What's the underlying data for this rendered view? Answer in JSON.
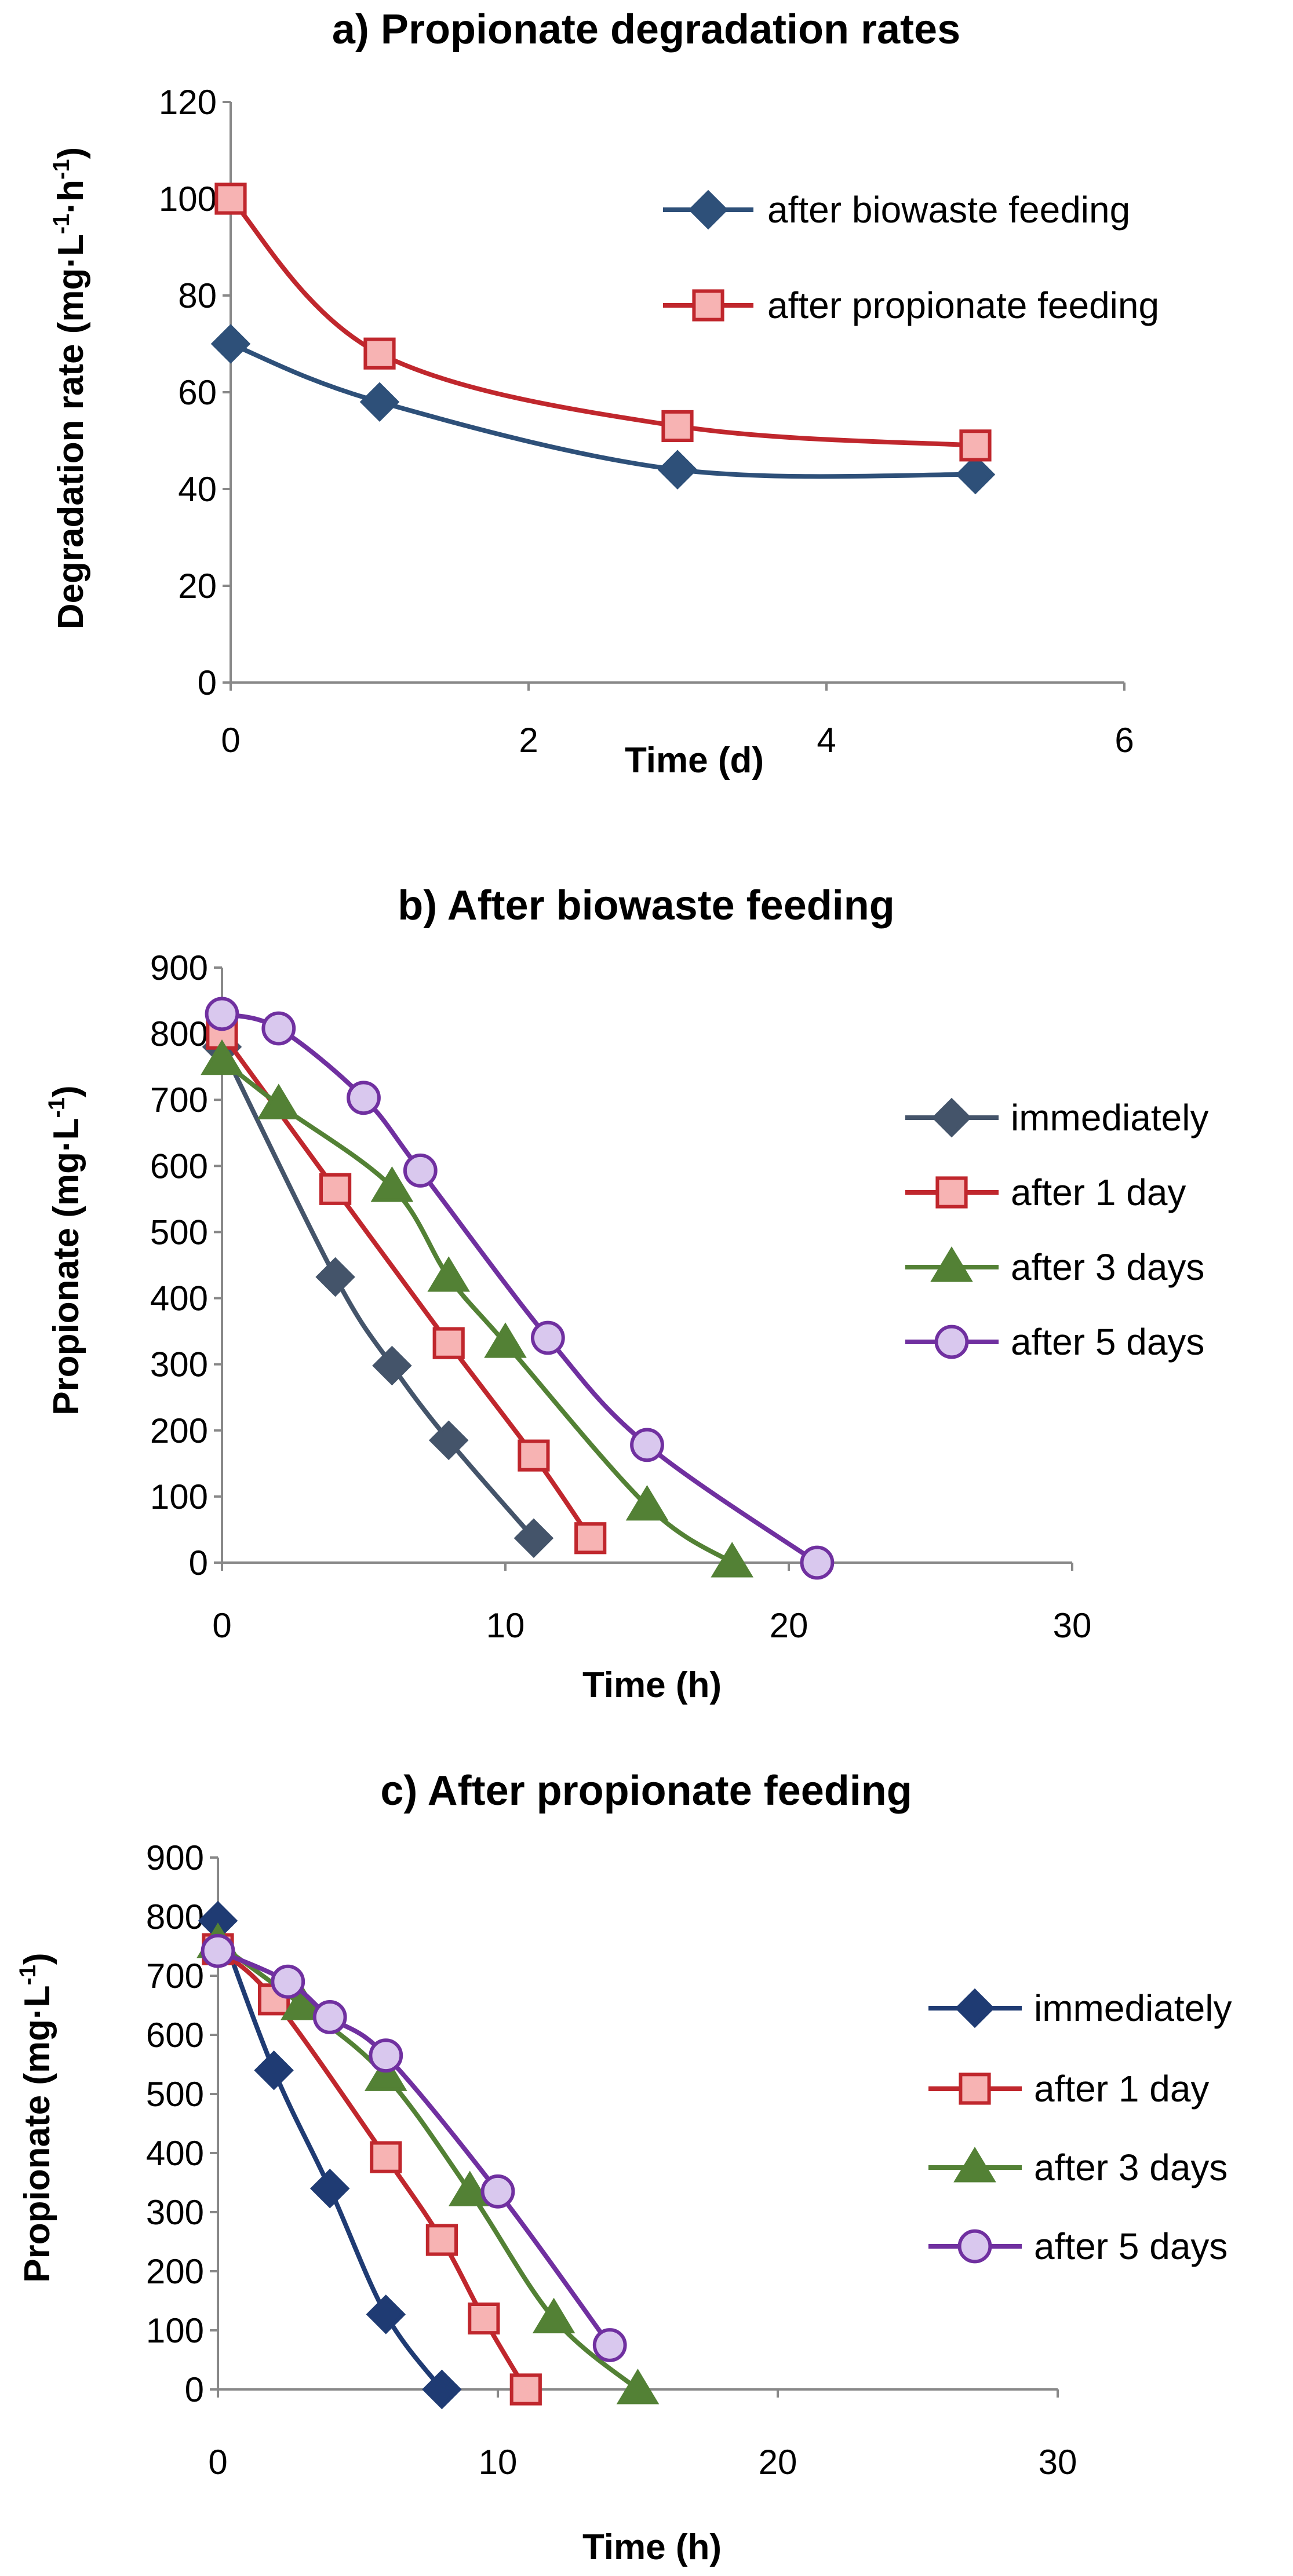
{
  "chart_data": [
    {
      "type": "line",
      "title": "a) Propionate degradation rates",
      "xlabel": "Time (d)",
      "ylabel": {
        "base": "Degradation rate (mg·L",
        "sup1": "-1",
        "mid": "·h",
        "sup2": "-1",
        "end": ")"
      },
      "xlim": [
        0,
        6
      ],
      "ylim": [
        0,
        120
      ],
      "xticks": [
        "0",
        "2",
        "4",
        "6"
      ],
      "yticks": [
        "0",
        "20",
        "40",
        "60",
        "80",
        "100",
        "120"
      ],
      "series": [
        {
          "name": "after biowaste feeding",
          "color": "#2e5079",
          "fill": "#2e5079",
          "marker": "diamond",
          "x": [
            0,
            1,
            3,
            5
          ],
          "y": [
            70,
            58,
            44,
            43
          ]
        },
        {
          "name": "after propionate feeding",
          "color": "#c0272d",
          "fill": "#f7b3b3",
          "marker": "square",
          "x": [
            0,
            1,
            3,
            5
          ],
          "y": [
            100,
            68,
            53,
            49
          ]
        }
      ]
    },
    {
      "type": "line",
      "title": "b) After biowaste feeding",
      "xlabel": "Time (h)",
      "ylabel": {
        "base": "Propionate (mg·L",
        "sup1": "-1",
        "end": ")"
      },
      "xlim": [
        0,
        30
      ],
      "ylim": [
        0,
        900
      ],
      "xticks": [
        "0",
        "10",
        "20",
        "30"
      ],
      "yticks": [
        "0",
        "100",
        "200",
        "300",
        "400",
        "500",
        "600",
        "700",
        "800",
        "900"
      ],
      "series": [
        {
          "name": "immediately",
          "color": "#44546a",
          "fill": "#44546a",
          "marker": "diamond",
          "x": [
            0,
            4,
            6,
            8,
            11
          ],
          "y": [
            780,
            432,
            298,
            185,
            37
          ]
        },
        {
          "name": "after 1 day",
          "color": "#c0272d",
          "fill": "#f7b3b3",
          "marker": "square",
          "x": [
            0,
            4,
            8,
            11,
            13
          ],
          "y": [
            800,
            565,
            332,
            162,
            37
          ]
        },
        {
          "name": "after 3 days",
          "color": "#538135",
          "fill": "#538135",
          "marker": "triangle",
          "x": [
            0,
            2,
            6,
            8,
            10,
            15,
            18
          ],
          "y": [
            760,
            693,
            568,
            432,
            332,
            86,
            0
          ]
        },
        {
          "name": "after 5 days",
          "color": "#7030a0",
          "fill": "#d9c8ee",
          "marker": "circle",
          "x": [
            0,
            2,
            5,
            7,
            11.5,
            15,
            21
          ],
          "y": [
            830,
            808,
            703,
            593,
            340,
            178,
            0
          ]
        }
      ]
    },
    {
      "type": "line",
      "title": "c) After propionate feeding",
      "xlabel": "Time (h)",
      "ylabel": {
        "base": "Propionate (mg·L",
        "sup1": "-1",
        "end": ")"
      },
      "xlim": [
        0,
        30
      ],
      "ylim": [
        0,
        900
      ],
      "xticks": [
        "0",
        "10",
        "20",
        "30"
      ],
      "yticks": [
        "0",
        "100",
        "200",
        "300",
        "400",
        "500",
        "600",
        "700",
        "800",
        "900"
      ],
      "series": [
        {
          "name": "immediately",
          "color": "#1f3b73",
          "fill": "#1f3b73",
          "marker": "diamond",
          "x": [
            0,
            2,
            4,
            6,
            8
          ],
          "y": [
            793,
            540,
            340,
            127,
            0
          ]
        },
        {
          "name": "after 1 day",
          "color": "#c0272d",
          "fill": "#f7b3b3",
          "marker": "square",
          "x": [
            0,
            2,
            6,
            8,
            9.5,
            11
          ],
          "y": [
            745,
            660,
            393,
            253,
            120,
            0
          ]
        },
        {
          "name": "after 3 days",
          "color": "#538135",
          "fill": "#538135",
          "marker": "triangle",
          "x": [
            0,
            3,
            6,
            9,
            12,
            15
          ],
          "y": [
            755,
            650,
            530,
            335,
            120,
            0
          ]
        },
        {
          "name": "after 5 days",
          "color": "#7030a0",
          "fill": "#d9c8ee",
          "marker": "circle",
          "x": [
            0,
            2.5,
            4,
            6,
            10,
            14
          ],
          "y": [
            742,
            690,
            630,
            565,
            335,
            75
          ]
        }
      ]
    }
  ]
}
